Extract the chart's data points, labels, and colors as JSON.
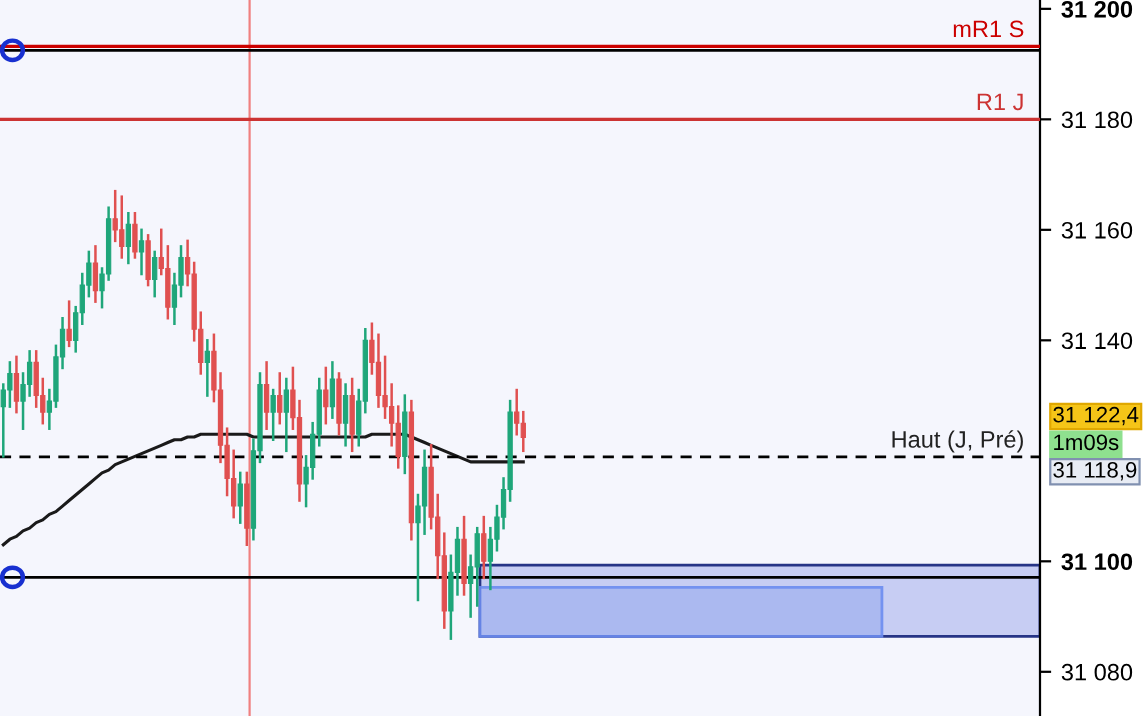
{
  "chart_data": {
    "type": "candlestick",
    "categories": [
      null,
      null,
      null,
      null,
      null,
      null,
      null,
      null,
      null,
      null,
      null,
      null,
      null,
      null,
      null,
      null,
      null,
      null,
      null,
      null,
      null,
      null,
      null,
      null,
      null,
      null,
      null,
      null,
      null,
      null,
      null,
      null,
      null,
      null,
      null,
      null,
      null,
      null,
      null,
      null,
      null,
      null,
      null,
      null,
      null,
      null,
      null,
      null,
      null,
      null,
      null,
      null,
      null,
      null,
      null,
      null,
      null,
      null,
      null,
      null,
      null,
      null,
      null,
      null,
      null,
      null,
      null,
      null,
      null,
      null,
      null,
      null,
      null,
      null,
      null,
      null,
      null,
      null,
      null,
      null,
      null,
      null,
      null,
      null,
      null,
      null,
      null,
      null,
      null,
      null,
      null,
      null,
      null,
      null,
      null,
      null,
      null,
      null,
      null,
      null,
      null,
      null,
      null,
      null,
      null,
      null,
      null,
      null,
      null,
      null,
      null,
      null,
      null,
      null,
      null,
      null,
      null,
      null,
      null,
      null,
      null,
      null,
      null,
      null,
      null,
      null,
      null,
      null,
      null,
      null,
      null,
      null,
      null,
      null,
      null,
      null,
      null,
      null,
      null,
      null,
      null,
      null,
      null,
      null,
      null,
      null,
      null,
      null,
      null,
      null,
      null,
      null,
      null,
      null,
      null,
      null,
      null,
      null
    ],
    "ohlc": [
      [
        31128,
        31132,
        31119,
        31131
      ],
      [
        31131,
        31136,
        31128,
        31134
      ],
      [
        31134,
        31137,
        31127,
        31129
      ],
      [
        31129,
        31134,
        31124,
        31132
      ],
      [
        31132,
        31138,
        31130,
        31136
      ],
      [
        31136,
        31138,
        31128,
        31130
      ],
      [
        31130,
        31133,
        31125,
        31127
      ],
      [
        31127,
        31131,
        31124,
        31129
      ],
      [
        31129,
        31139,
        31128,
        31137
      ],
      [
        31137,
        31144,
        31135,
        31142
      ],
      [
        31142,
        31147,
        31139,
        31140
      ],
      [
        31140,
        31146,
        31138,
        31145
      ],
      [
        31145,
        31152,
        31143,
        31150
      ],
      [
        31150,
        31156,
        31148,
        31154
      ],
      [
        31154,
        31157,
        31147,
        31149
      ],
      [
        31149,
        31153,
        31146,
        31152
      ],
      [
        31152,
        31164,
        31151,
        31162
      ],
      [
        31162,
        31167,
        31158,
        31160
      ],
      [
        31160,
        31166,
        31155,
        31157
      ],
      [
        31157,
        31163,
        31154,
        31161
      ],
      [
        31161,
        31163,
        31155,
        31156
      ],
      [
        31156,
        31160,
        31152,
        31158
      ],
      [
        31158,
        31159,
        31150,
        31151
      ],
      [
        31151,
        31156,
        31148,
        31155
      ],
      [
        31155,
        31160,
        31152,
        31153
      ],
      [
        31153,
        31157,
        31144,
        31146
      ],
      [
        31146,
        31152,
        31143,
        31150
      ],
      [
        31150,
        31157,
        31148,
        31155
      ],
      [
        31155,
        31158,
        31150,
        31152
      ],
      [
        31152,
        31154,
        31140,
        31142
      ],
      [
        31142,
        31145,
        31134,
        31136
      ],
      [
        31136,
        31140,
        31130,
        31138
      ],
      [
        31138,
        31141,
        31129,
        31131
      ],
      [
        31131,
        31134,
        31118,
        31121
      ],
      [
        31121,
        31124,
        31112,
        31115
      ],
      [
        31115,
        31120,
        31108,
        31110
      ],
      [
        31110,
        31116,
        31107,
        31114
      ],
      [
        31114,
        31116,
        31103,
        31106
      ],
      [
        31106,
        31122,
        31104,
        31120
      ],
      [
        31120,
        31134,
        31118,
        31132
      ],
      [
        31132,
        31136,
        31124,
        31127
      ],
      [
        31127,
        31131,
        31122,
        31130
      ],
      [
        31130,
        31134,
        31125,
        31127
      ],
      [
        31127,
        31133,
        31120,
        31131
      ],
      [
        31131,
        31135,
        31124,
        31126
      ],
      [
        31126,
        31129,
        31111,
        31114
      ],
      [
        31114,
        31119,
        31110,
        31117
      ],
      [
        31117,
        31125,
        31115,
        31123
      ],
      [
        31123,
        31133,
        31121,
        31131
      ],
      [
        31131,
        31135,
        31125,
        31128
      ],
      [
        31128,
        31136,
        31126,
        31133
      ],
      [
        31133,
        31134,
        31123,
        31125
      ],
      [
        31125,
        31132,
        31121,
        31130
      ],
      [
        31130,
        31133,
        31120,
        31123
      ],
      [
        31123,
        31131,
        31121,
        31129
      ],
      [
        31129,
        31142,
        31127,
        31140
      ],
      [
        31140,
        31143,
        31134,
        31136
      ],
      [
        31136,
        31141,
        31128,
        31130
      ],
      [
        31130,
        31137,
        31126,
        31128
      ],
      [
        31128,
        31132,
        31121,
        31125
      ],
      [
        31125,
        31128,
        31117,
        31119
      ],
      [
        31119,
        31130,
        31116,
        31127
      ],
      [
        31127,
        31129,
        31104,
        31107
      ],
      [
        31107,
        31112,
        31093,
        31110
      ],
      [
        31110,
        31120,
        31105,
        31117
      ],
      [
        31117,
        31121,
        31106,
        31108
      ],
      [
        31108,
        31112,
        31097,
        31101
      ],
      [
        31101,
        31105,
        31088,
        31091
      ],
      [
        31091,
        31101,
        31086,
        31098
      ],
      [
        31098,
        31106,
        31094,
        31104
      ],
      [
        31104,
        31108,
        31094,
        31096
      ],
      [
        31096,
        31101,
        31090,
        31099
      ],
      [
        31099,
        31106,
        31092,
        31105
      ],
      [
        31105,
        31108,
        31097,
        31100
      ],
      [
        31100,
        31106,
        31095,
        31104
      ],
      [
        31104,
        31110,
        31102,
        31108
      ],
      [
        31108,
        31115,
        31106,
        31113
      ],
      [
        31113,
        31129,
        31111,
        31127
      ],
      [
        31127,
        31131,
        31123,
        31125
      ],
      [
        31125,
        31127,
        31120,
        31122.4
      ],
      null,
      null,
      null,
      null,
      null,
      null,
      null,
      null,
      null,
      null,
      null,
      null,
      null,
      null,
      null,
      null,
      null,
      null,
      null,
      null,
      null,
      null,
      null,
      null,
      null,
      null,
      null,
      null,
      null,
      null,
      null,
      null,
      null,
      null,
      null,
      null,
      null,
      null,
      null,
      null,
      null,
      null,
      null,
      null,
      null,
      null,
      null,
      null,
      null,
      null,
      null,
      null,
      null,
      null,
      null,
      null,
      null,
      null,
      null,
      null,
      null,
      null,
      null,
      null,
      null,
      null,
      null,
      null,
      null,
      null,
      null,
      null,
      null,
      null,
      null,
      null,
      null,
      null
    ],
    "series": [
      {
        "type": "line",
        "color": "#1a1a1a",
        "values": [
          31103,
          31104,
          31104.5,
          31105.5,
          31106,
          31107,
          31107.5,
          31108.5,
          31109,
          31110,
          31111,
          31112,
          31113,
          31114,
          31115,
          31116,
          31116.5,
          31117.5,
          31118,
          31118.5,
          31119,
          31119.5,
          31120,
          31120.5,
          31121,
          31121.5,
          31122,
          31122,
          31122.5,
          31122.5,
          31123,
          31123,
          31123,
          31123,
          31123,
          31123,
          31123,
          31123,
          31122.5,
          31122.5,
          31122.5,
          31122.5,
          31122.5,
          31122.5,
          31122.5,
          31122.5,
          31122.5,
          31122.5,
          31122.5,
          31122.5,
          31122.5,
          31122.5,
          31122.5,
          31122.5,
          31122.5,
          31122.5,
          31123,
          31123,
          31123,
          31123,
          31123,
          31123,
          31122.5,
          31122,
          31121.5,
          31121,
          31120.5,
          31120,
          31119.5,
          31119,
          31118.5,
          31118,
          31118,
          31118,
          31118,
          31118,
          31118,
          31118,
          31118,
          31118,
          null,
          null,
          null,
          null,
          null,
          null,
          null,
          null,
          null,
          null,
          null,
          null,
          null,
          null,
          null,
          null,
          null,
          null,
          null,
          null,
          null,
          null,
          null,
          null,
          null,
          null,
          null,
          null,
          null,
          null,
          null,
          null,
          null,
          null,
          null,
          null,
          null,
          null,
          null,
          null,
          null,
          null,
          null,
          null,
          null,
          null,
          null,
          null,
          null,
          null,
          null,
          null,
          null,
          null,
          null,
          null,
          null,
          null,
          null,
          null,
          null,
          null,
          null,
          null,
          null,
          null,
          null,
          null,
          null,
          null,
          null,
          null,
          null,
          null,
          null,
          null,
          null,
          null
        ]
      }
    ],
    "ylim": [
      31072,
      31201.6
    ],
    "yticks": [
      {
        "value": 31080,
        "label": "31 080"
      },
      {
        "value": 31100,
        "label": "31 100"
      },
      {
        "value": 31140,
        "label": "31 140"
      },
      {
        "value": 31160,
        "label": "31 160"
      },
      {
        "value": 31180,
        "label": "31 180"
      },
      {
        "value": 31200,
        "label": "31 200"
      }
    ],
    "tick_labels": "y",
    "ref_lines": [
      {
        "axis": "y",
        "value": 31193.2,
        "label": "mR1 S",
        "color": "#cc0000"
      },
      {
        "axis": "y",
        "value": 31192.5,
        "color": "#000000"
      },
      {
        "axis": "y",
        "value": 31180,
        "label": "R1 J",
        "color": "#cc3333"
      },
      {
        "axis": "y",
        "value": 31118.9,
        "label": "Haut (J, Pré)",
        "color": "#000000",
        "line_style": "dashed"
      },
      {
        "axis": "y",
        "value": 31097.1,
        "color": "#000000"
      }
    ],
    "bands": [
      {
        "axis": "y",
        "from": 31086.4,
        "to": 31099.3,
        "color": "#c3c9f3"
      },
      {
        "axis": "y",
        "from": 31086.4,
        "to": 31095.3,
        "color": "#a9b7f0"
      }
    ],
    "annotations": [
      "31 122,4",
      "1m09s",
      "31 118,9"
    ]
  }
}
